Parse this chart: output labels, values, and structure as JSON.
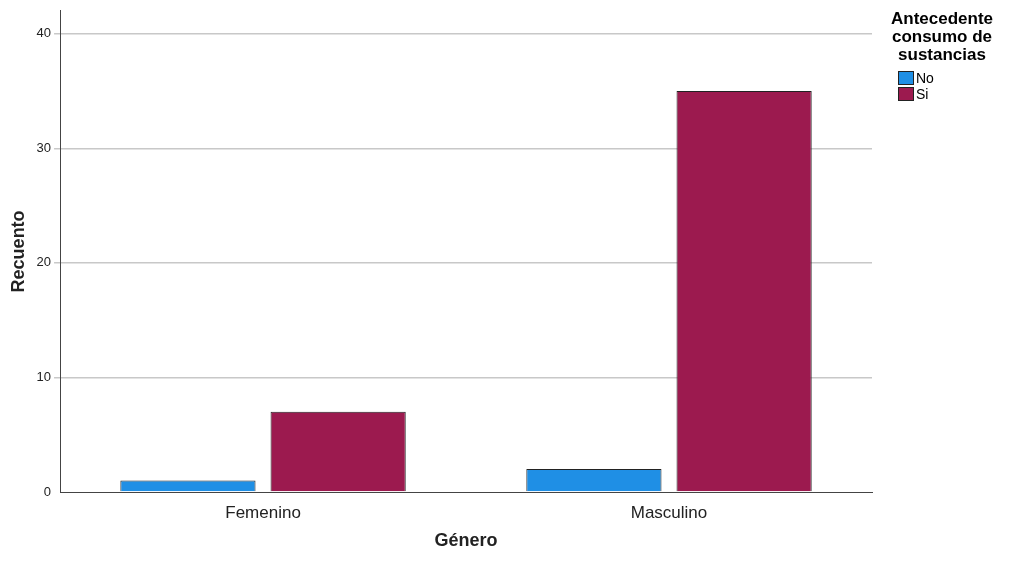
{
  "chart_data": {
    "type": "bar",
    "xlabel": "Género",
    "ylabel": "Recuento",
    "legend_title": "Antecedente consumo de sustancias",
    "categories": [
      "Femenino",
      "Masculino"
    ],
    "series": [
      {
        "name": "No",
        "color": "#1f8fe5",
        "values": [
          1,
          2
        ]
      },
      {
        "name": "Si",
        "color": "#9c1a4f",
        "values": [
          7,
          35
        ]
      }
    ],
    "ylim": [
      0,
      42
    ],
    "yticks": [
      0,
      10,
      20,
      30,
      40
    ],
    "grid": "y",
    "legend": "top right"
  }
}
